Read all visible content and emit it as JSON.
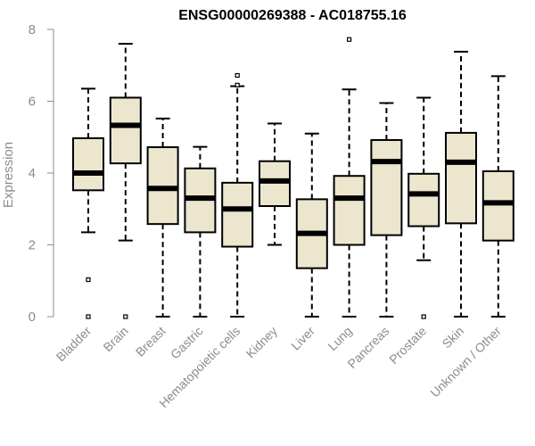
{
  "chart_data": {
    "type": "boxplot",
    "title": "ENSG00000269388 - AC018755.16",
    "xlabel": "",
    "ylabel": "Expression",
    "ylim": [
      0,
      8
    ],
    "yticks": [
      0,
      2,
      4,
      6,
      8
    ],
    "grid": false,
    "legend": "none",
    "colors": {
      "box_fill": "#ede6cf",
      "box_stroke": "#000000",
      "median": "#000000",
      "axis": "#8c8c8c",
      "tick_label": "#8c8c8c",
      "title": "#000000"
    },
    "categories": [
      "Bladder",
      "Brain",
      "Breast",
      "Gastric",
      "Hematopoietic cells",
      "Kidney",
      "Liver",
      "Lung",
      "Pancreas",
      "Prostate",
      "Skin",
      "Unknown / Other"
    ],
    "boxes": [
      {
        "whisker_low": 2.35,
        "q1": 3.52,
        "median": 4.0,
        "q3": 4.97,
        "whisker_high": 6.35,
        "outliers": [
          1.03,
          0.0
        ]
      },
      {
        "whisker_low": 2.12,
        "q1": 4.27,
        "median": 5.33,
        "q3": 6.1,
        "whisker_high": 7.6,
        "outliers": [
          0.0
        ]
      },
      {
        "whisker_low": 0.0,
        "q1": 2.58,
        "median": 3.57,
        "q3": 4.72,
        "whisker_high": 5.52,
        "outliers": []
      },
      {
        "whisker_low": 0.0,
        "q1": 2.35,
        "median": 3.3,
        "q3": 4.13,
        "whisker_high": 4.73,
        "outliers": []
      },
      {
        "whisker_low": 0.0,
        "q1": 1.95,
        "median": 3.0,
        "q3": 3.73,
        "whisker_high": 6.42,
        "outliers": [
          6.72,
          6.45
        ]
      },
      {
        "whisker_low": 2.0,
        "q1": 3.08,
        "median": 3.78,
        "q3": 4.33,
        "whisker_high": 5.38,
        "outliers": []
      },
      {
        "whisker_low": 0.0,
        "q1": 1.35,
        "median": 2.32,
        "q3": 3.27,
        "whisker_high": 5.1,
        "outliers": []
      },
      {
        "whisker_low": 0.0,
        "q1": 2.0,
        "median": 3.3,
        "q3": 3.92,
        "whisker_high": 6.33,
        "outliers": [
          7.72
        ]
      },
      {
        "whisker_low": 0.0,
        "q1": 2.27,
        "median": 4.32,
        "q3": 4.92,
        "whisker_high": 5.95,
        "outliers": []
      },
      {
        "whisker_low": 1.57,
        "q1": 2.52,
        "median": 3.42,
        "q3": 3.98,
        "whisker_high": 6.1,
        "outliers": [
          0.0
        ]
      },
      {
        "whisker_low": 0.0,
        "q1": 2.6,
        "median": 4.3,
        "q3": 5.12,
        "whisker_high": 7.38,
        "outliers": []
      },
      {
        "whisker_low": 0.0,
        "q1": 2.12,
        "median": 3.17,
        "q3": 4.05,
        "whisker_high": 6.7,
        "outliers": []
      }
    ]
  }
}
